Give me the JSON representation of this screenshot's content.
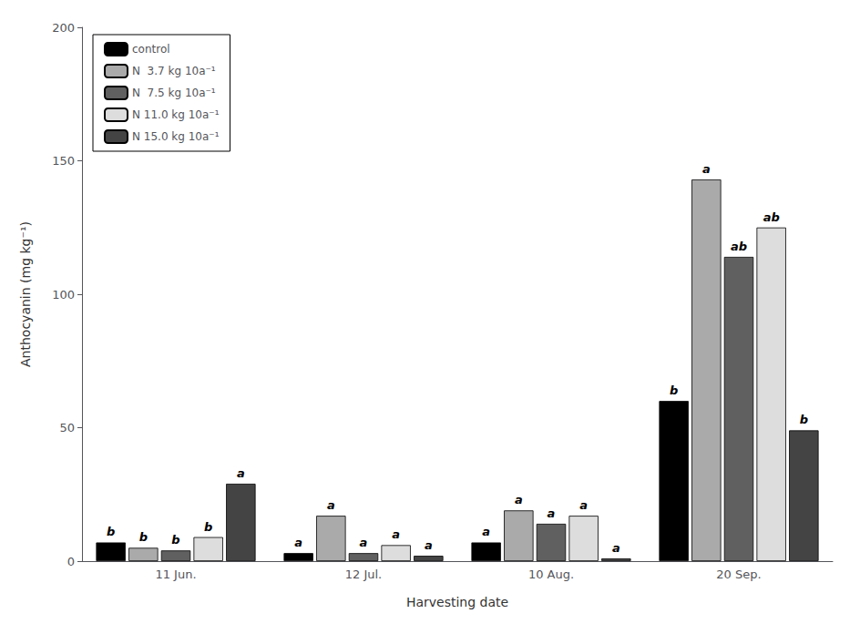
{
  "chart_data": {
    "type": "bar",
    "xlabel": "Harvesting date",
    "ylabel": "Anthocyanin (mg kg⁻¹)",
    "categories": [
      "11 Jun.",
      "12 Jul.",
      "10 Aug.",
      "20 Sep."
    ],
    "series": [
      {
        "name": "control",
        "color": "#000000",
        "values": [
          7,
          3,
          7,
          60
        ],
        "annotations": [
          "b",
          "a",
          "a",
          "b"
        ]
      },
      {
        "name": "N  3.7 kg 10a⁻¹",
        "color": "#aaaaaa",
        "values": [
          5,
          17,
          19,
          143
        ],
        "annotations": [
          "b",
          "a",
          "a",
          "a"
        ]
      },
      {
        "name": "N  7.5 kg 10a⁻¹",
        "color": "#606060",
        "values": [
          4,
          3,
          14,
          114
        ],
        "annotations": [
          "b",
          "a",
          "a",
          "ab"
        ]
      },
      {
        "name": "N 11.0 kg 10a⁻¹",
        "color": "#dddddd",
        "values": [
          9,
          6,
          17,
          125
        ],
        "annotations": [
          "b",
          "a",
          "a",
          "ab"
        ]
      },
      {
        "name": "N 15.0 kg 10a⁻¹",
        "color": "#444444",
        "values": [
          29,
          2,
          1,
          49
        ],
        "annotations": [
          "a",
          "a",
          "a",
          "b"
        ]
      }
    ],
    "ylim": [
      0,
      200
    ],
    "yticks": [
      0,
      50,
      100,
      150,
      200
    ],
    "grid": false,
    "legend": "upper left"
  }
}
